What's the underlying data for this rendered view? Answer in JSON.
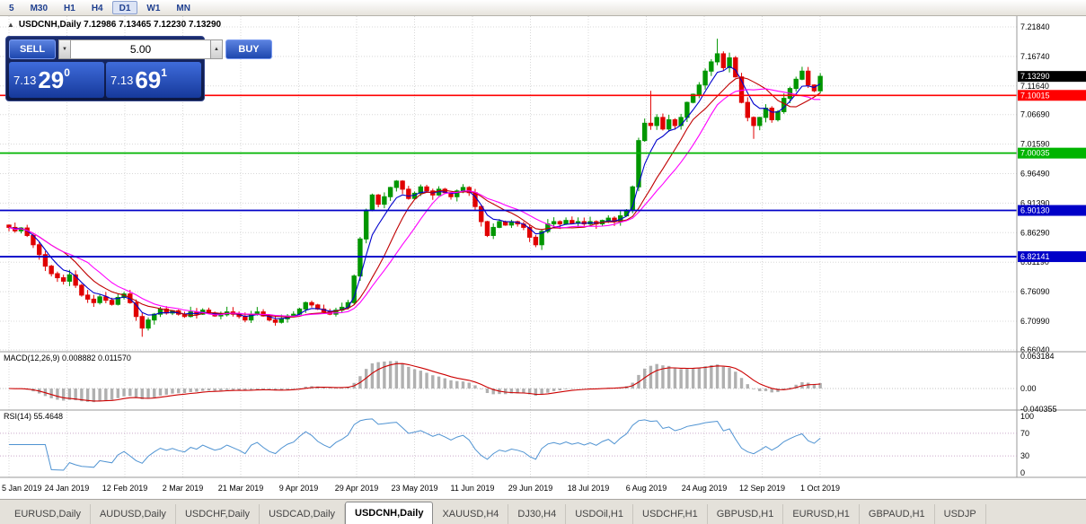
{
  "toolbar": {
    "timeframes": [
      "5",
      "M30",
      "H1",
      "H4",
      "D1",
      "W1",
      "MN"
    ],
    "active": "D1"
  },
  "chart": {
    "collapse_arrow": "▲",
    "title_text": "USDCNH,Daily 7.12986 7.13465 7.12230 7.13290",
    "macd_label": "MACD(12,26,9) 0.008882 0.011570",
    "rsi_label": "RSI(14) 55.4648",
    "trade_panel": {
      "sell_label": "SELL",
      "buy_label": "BUY",
      "volume": "5.00",
      "spinner_down": "▼",
      "spinner_up": "▲",
      "sell_price_prefix": "7.13",
      "sell_price_big": "29",
      "sell_price_sup": "0",
      "buy_price_prefix": "7.13",
      "buy_price_big": "69",
      "buy_price_sup": "1"
    }
  },
  "chart_data": {
    "type": "candlestick",
    "symbol": "USDCNH",
    "timeframe": "Daily",
    "title": "USDCNH,Daily",
    "ohlc_current": {
      "open": 7.12986,
      "high": 7.13465,
      "low": 7.1223,
      "close": 7.1329
    },
    "current_price": 7.1329,
    "ylim": [
      6.6604,
      7.2184
    ],
    "x_ticks": [
      "5 Jan 2019",
      "24 Jan 2019",
      "12 Feb 2019",
      "2 Mar 2019",
      "21 Mar 2019",
      "9 Apr 2019",
      "29 Apr 2019",
      "23 May 2019",
      "11 Jun 2019",
      "29 Jun 2019",
      "18 Jul 2019",
      "6 Aug 2019",
      "24 Aug 2019",
      "12 Sep 2019",
      "1 Oct 2019"
    ],
    "grid_prices": [
      7.2184,
      7.1674,
      7.1164,
      7.0669,
      7.0159,
      6.9649,
      6.9139,
      6.8629,
      6.8119,
      6.7609,
      6.7099,
      6.6604
    ],
    "close_series": [
      6.872,
      6.866,
      6.871,
      6.858,
      6.842,
      6.825,
      6.805,
      6.792,
      6.785,
      6.779,
      6.79,
      6.772,
      6.755,
      6.748,
      6.742,
      6.752,
      6.746,
      6.739,
      6.751,
      6.757,
      6.742,
      6.718,
      6.698,
      6.712,
      6.722,
      6.731,
      6.724,
      6.728,
      6.722,
      6.718,
      6.726,
      6.722,
      6.729,
      6.724,
      6.719,
      6.721,
      6.726,
      6.722,
      6.718,
      6.712,
      6.722,
      6.726,
      6.719,
      6.712,
      6.708,
      6.714,
      6.719,
      6.722,
      6.731,
      6.742,
      6.738,
      6.731,
      6.726,
      6.722,
      6.729,
      6.734,
      6.742,
      6.788,
      6.852,
      6.902,
      6.928,
      6.912,
      6.925,
      6.941,
      6.952,
      6.938,
      6.922,
      6.931,
      6.942,
      6.935,
      6.928,
      6.938,
      6.932,
      6.925,
      6.935,
      6.941,
      6.932,
      6.908,
      6.882,
      6.858,
      6.872,
      6.882,
      6.876,
      6.882,
      6.878,
      6.872,
      6.855,
      6.842,
      6.865,
      6.878,
      6.882,
      6.878,
      6.884,
      6.879,
      6.882,
      6.878,
      6.882,
      6.878,
      6.884,
      6.888,
      6.882,
      6.892,
      6.902,
      6.942,
      7.022,
      7.052,
      7.048,
      7.062,
      7.042,
      7.058,
      7.048,
      7.062,
      7.088,
      7.102,
      7.118,
      7.142,
      7.158,
      7.172,
      7.148,
      7.165,
      7.132,
      7.088,
      7.062,
      7.048,
      7.062,
      7.078,
      7.058,
      7.072,
      7.095,
      7.112,
      7.128,
      7.142,
      7.118,
      7.108,
      7.133
    ],
    "spikes": [
      {
        "i": 22,
        "l": 6.683
      },
      {
        "i": 57,
        "l": 6.738
      },
      {
        "i": 106,
        "h": 7.108
      },
      {
        "i": 117,
        "h": 7.198
      },
      {
        "i": 123,
        "l": 7.025
      }
    ],
    "levels": [
      {
        "price": 7.10015,
        "color": "#ff0000",
        "width": 1.6
      },
      {
        "price": 7.00035,
        "color": "#00b400",
        "width": 1.8
      },
      {
        "price": 6.9013,
        "color": "#0000c8",
        "width": 1.8
      },
      {
        "price": 6.82141,
        "color": "#0000c8",
        "width": 1.8
      }
    ],
    "markers": [
      {
        "label": "7.13290",
        "price": 7.1329,
        "bg": "#000000"
      },
      {
        "label": "7.10015",
        "price": 7.10015,
        "bg": "#ff0000"
      },
      {
        "label": "7.00035",
        "price": 7.00035,
        "bg": "#00b400"
      },
      {
        "label": "6.90130",
        "price": 6.9013,
        "bg": "#0000c8"
      },
      {
        "label": "6.82141",
        "price": 6.82141,
        "bg": "#0000c8"
      }
    ],
    "macd": {
      "params": "12,26,9",
      "value_main": 0.008882,
      "value_signal": 0.01157,
      "axis": [
        {
          "v": 0.063184,
          "t": "0.063184"
        },
        {
          "v": 0,
          "t": "0.00"
        },
        {
          "v": -0.040355,
          "t": "-0.040355"
        }
      ]
    },
    "rsi": {
      "period": 14,
      "current": 55.4648,
      "axis": [
        100,
        70,
        30,
        0
      ],
      "dotted_levels": [
        70,
        30
      ]
    },
    "colors": {
      "up": "#009600",
      "down": "#e00000",
      "ma_fast": "#0000cd",
      "ma_mid": "#c00000",
      "ma_slow": "#ff00ff",
      "macd_hist": "#b0b0b0",
      "macd_signal": "#cc0000",
      "rsi": "#4f93d2",
      "grid": "#d8d8d8"
    }
  },
  "tabs": {
    "items": [
      "EURUSD,Daily",
      "AUDUSD,Daily",
      "USDCHF,Daily",
      "USDCAD,Daily",
      "USDCNH,Daily",
      "XAUUSD,H4",
      "DJ30,H4",
      "USDOil,H1",
      "USDCHF,H1",
      "GBPUSD,H1",
      "EURUSD,H1",
      "GBPAUD,H1",
      "USDJP"
    ],
    "active_index": 4
  }
}
